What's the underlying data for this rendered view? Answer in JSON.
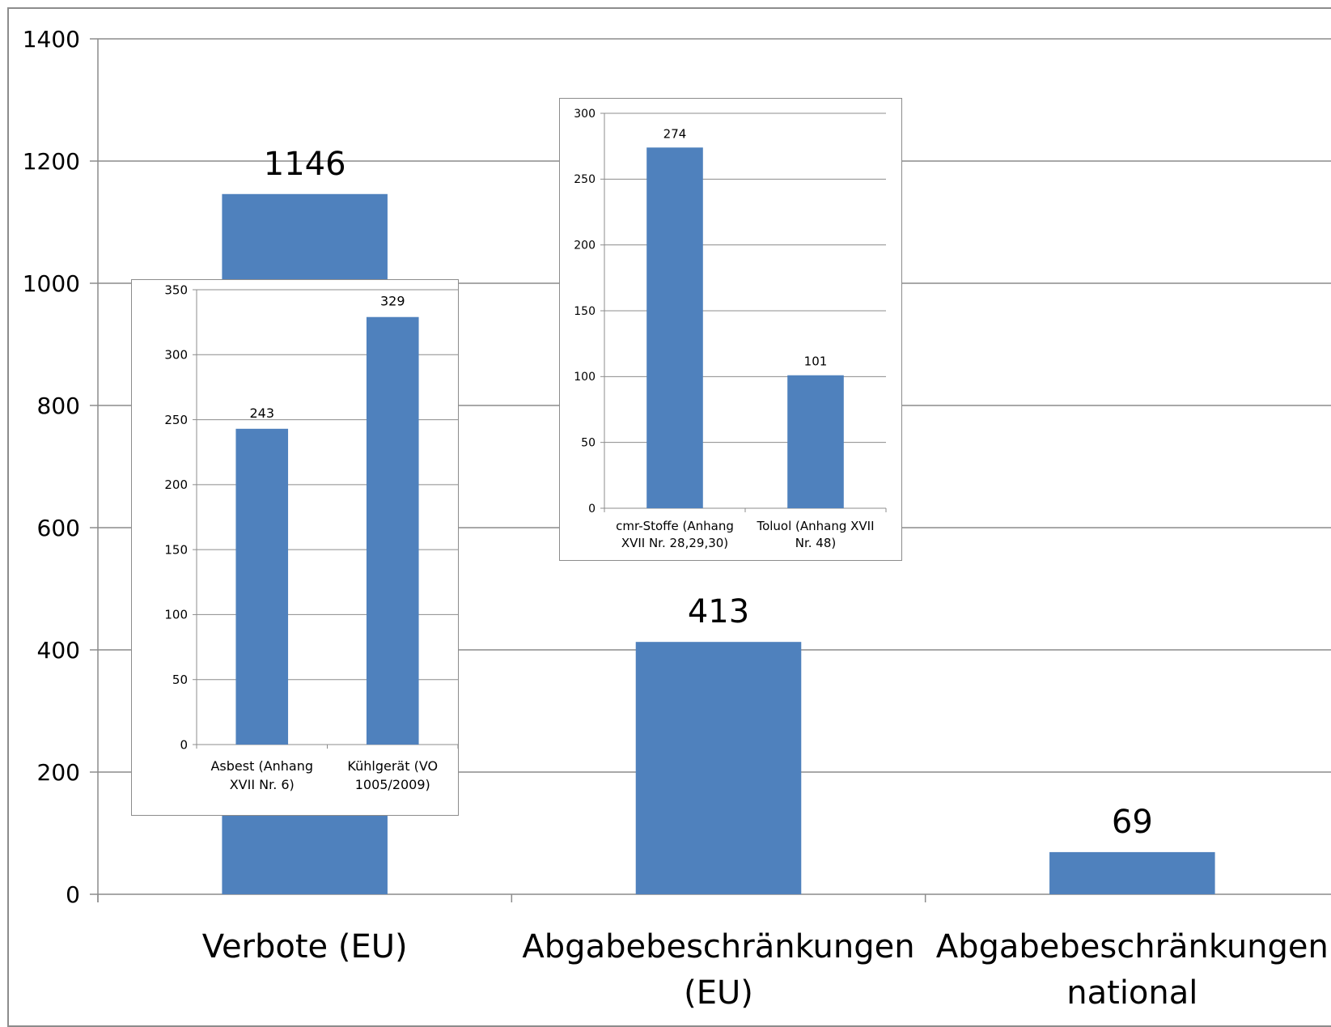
{
  "colors": {
    "bar": "#4f81bd",
    "grid": "#8c8c8c",
    "text": "#000000"
  },
  "chart_data": [
    {
      "type": "bar",
      "categories": [
        "Verbote (EU)",
        "Abgabebeschränkungen (EU)",
        "Abgabebeschränkungen national"
      ],
      "values": [
        1146,
        413,
        69
      ],
      "data_labels": [
        "1146",
        "413",
        "69"
      ],
      "ylim": [
        0,
        1400
      ],
      "yticks": [
        0,
        200,
        400,
        600,
        800,
        1000,
        1200,
        1400
      ],
      "grid": true,
      "title": "",
      "xlabel": "",
      "ylabel": ""
    },
    {
      "type": "bar",
      "categories": [
        "Asbest (Anhang XVII Nr. 6)",
        "Kühlgerät (VO 1005/2009)"
      ],
      "values": [
        243,
        329
      ],
      "data_labels": [
        "243",
        "329"
      ],
      "ylim": [
        0,
        350
      ],
      "yticks": [
        0,
        50,
        100,
        150,
        200,
        250,
        300,
        350
      ],
      "grid": true
    },
    {
      "type": "bar",
      "categories": [
        "cmr-Stoffe (Anhang XVII Nr. 28,29,30)",
        "Toluol (Anhang XVII Nr. 48)"
      ],
      "values": [
        274,
        101
      ],
      "data_labels": [
        "274",
        "101"
      ],
      "ylim": [
        0,
        300
      ],
      "yticks": [
        0,
        50,
        100,
        150,
        200,
        250,
        300
      ],
      "grid": true
    }
  ]
}
